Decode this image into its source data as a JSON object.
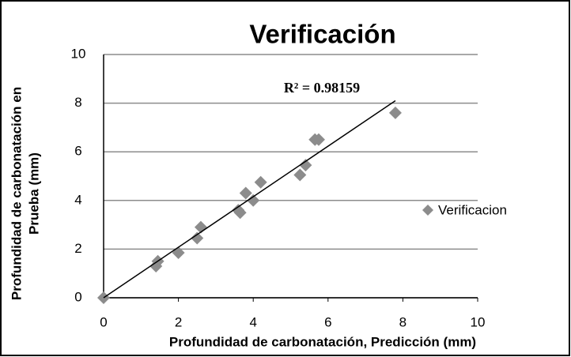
{
  "chart_data": {
    "type": "scatter",
    "title": "Verificación",
    "xlabel": "Profundidad de carbonatación, Predicción (mm)",
    "ylabel": [
      "Profundidad de carbonatación en",
      "Prueba (mm)"
    ],
    "series": [
      {
        "name": "Verificacion",
        "color": "#8c8c8c",
        "x": [
          0,
          1.4,
          1.45,
          2.0,
          2.5,
          2.6,
          3.6,
          3.65,
          3.8,
          4.0,
          4.2,
          5.25,
          5.4,
          5.65,
          5.75,
          7.8
        ],
        "y": [
          0,
          1.3,
          1.5,
          1.85,
          2.45,
          2.9,
          3.6,
          3.5,
          4.3,
          4.0,
          4.75,
          5.05,
          5.45,
          6.5,
          6.5,
          7.6
        ]
      }
    ],
    "trendline": {
      "x": [
        0,
        7.8
      ],
      "y": [
        0,
        8.1
      ],
      "color": "#000000"
    },
    "annotation": "R² = 0.98159",
    "xlim": [
      0,
      10
    ],
    "ylim": [
      0,
      10
    ],
    "xticks": [
      0,
      2,
      4,
      6,
      8,
      10
    ],
    "yticks": [
      0,
      2,
      4,
      6,
      8,
      10
    ],
    "grid": true,
    "legend": "right"
  }
}
